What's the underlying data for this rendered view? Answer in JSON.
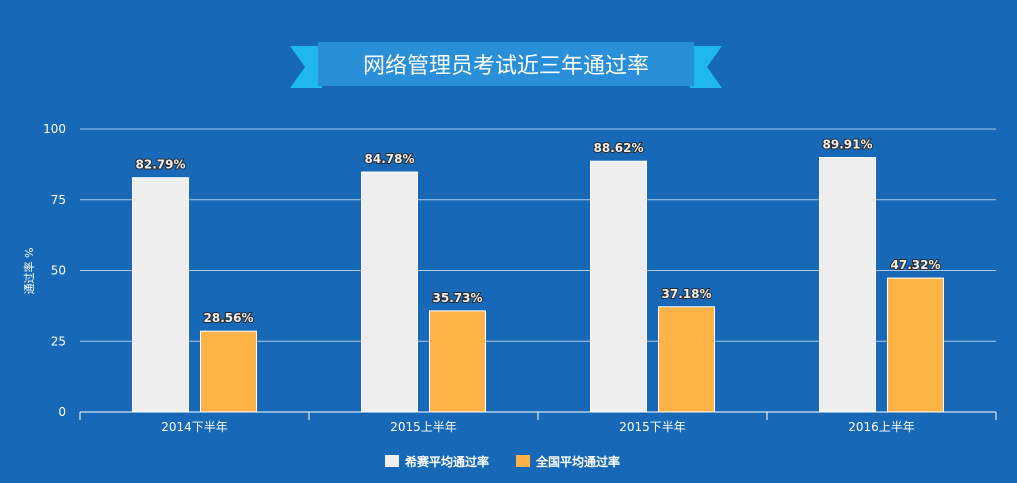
{
  "chart_data": {
    "type": "bar",
    "title": "网络管理员考试近三年通过率",
    "ylabel": "通过率 %",
    "xlabel": "",
    "ylim": [
      0,
      100
    ],
    "yticks": [
      0,
      25,
      50,
      75,
      100
    ],
    "grid": true,
    "legend_position": "bottom",
    "categories": [
      "2014下半年",
      "2015上半年",
      "2015下半年",
      "2016上半年"
    ],
    "series": [
      {
        "name": "希赛平均通过率",
        "color": "#eeeeee",
        "values": [
          82.79,
          84.78,
          88.62,
          89.91
        ],
        "labels": [
          "82.79%",
          "84.78%",
          "88.62%",
          "89.91%"
        ]
      },
      {
        "name": "全国平均通过率",
        "color": "#ffb347",
        "values": [
          28.56,
          35.73,
          37.18,
          47.32
        ],
        "labels": [
          "28.56%",
          "35.73%",
          "37.18%",
          "47.32%"
        ]
      }
    ]
  },
  "colors": {
    "background": "#1769b8",
    "ribbon_main": "#2a8fd9",
    "ribbon_tail": "#1fb8ec"
  }
}
